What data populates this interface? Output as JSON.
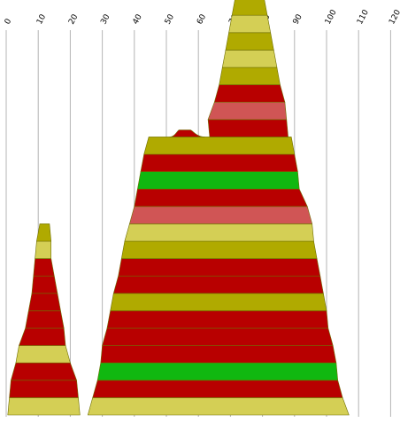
{
  "colors": {
    "olive": "#b0aa00",
    "khaki": "#d4cf55",
    "red": "#b80000",
    "rose": "#d05555",
    "green": "#10b810",
    "grid": "#b4b4b4"
  },
  "chart_data": {
    "type": "area",
    "title": "",
    "xlabel": "",
    "ylabel": "",
    "x_ticks": [
      "0",
      "10",
      "20",
      "30",
      "40",
      "50",
      "60",
      "70",
      "80",
      "90",
      "100",
      "110",
      "120"
    ],
    "x_range": [
      0,
      120
    ],
    "grid": "vertical lines at every 10 units",
    "legend": "none",
    "shapes": [
      {
        "name": "",
        "bands": [
          {
            "bottom": 0,
            "top": 1,
            "x_bottom": [
              0.5,
              23.0
            ],
            "x_top": [
              1.0,
              22.5
            ],
            "color": "khaki"
          },
          {
            "bottom": 1,
            "top": 2,
            "x_bottom": [
              1.0,
              22.5
            ],
            "x_top": [
              1.5,
              22.0
            ],
            "color": "red"
          },
          {
            "bottom": 2,
            "top": 3,
            "x_bottom": [
              1.5,
              22.0
            ],
            "x_top": [
              3.0,
              20.0
            ],
            "color": "red"
          },
          {
            "bottom": 3,
            "top": 4,
            "x_bottom": [
              3.0,
              20.0
            ],
            "x_top": [
              4.0,
              18.5
            ],
            "color": "khaki"
          },
          {
            "bottom": 4,
            "top": 5,
            "x_bottom": [
              4.0,
              18.5
            ],
            "x_top": [
              6.0,
              18.0
            ],
            "color": "red"
          },
          {
            "bottom": 5,
            "top": 6,
            "x_bottom": [
              6.0,
              18.0
            ],
            "x_top": [
              7.0,
              17.0
            ],
            "color": "red"
          },
          {
            "bottom": 6,
            "top": 7,
            "x_bottom": [
              7.0,
              17.0
            ],
            "x_top": [
              8.0,
              16.0
            ],
            "color": "red"
          },
          {
            "bottom": 7,
            "top": 8,
            "x_bottom": [
              8.0,
              16.0
            ],
            "x_top": [
              8.5,
              15.0
            ],
            "color": "red"
          },
          {
            "bottom": 8,
            "top": 9,
            "x_bottom": [
              8.5,
              15.0
            ],
            "x_top": [
              9.0,
              14.0
            ],
            "color": "red"
          },
          {
            "bottom": 9,
            "top": 10,
            "x_bottom": [
              9.0,
              14.0
            ],
            "x_top": [
              9.5,
              14.0
            ],
            "color": "khaki"
          },
          {
            "bottom": 10,
            "top": 11,
            "x_bottom": [
              9.5,
              14.0
            ],
            "x_top": [
              10.5,
              13.5
            ],
            "color": "olive"
          }
        ]
      },
      {
        "name": "",
        "bands": [
          {
            "bottom": 0,
            "top": 1,
            "x_bottom": [
              25.5,
              107.0
            ],
            "x_top": [
              27.0,
              105.0
            ],
            "color": "khaki"
          },
          {
            "bottom": 1,
            "top": 2,
            "x_bottom": [
              27.0,
              105.0
            ],
            "x_top": [
              28.5,
              103.5
            ],
            "color": "red"
          },
          {
            "bottom": 2,
            "top": 3,
            "x_bottom": [
              28.5,
              103.5
            ],
            "x_top": [
              29.5,
              103.0
            ],
            "color": "green"
          },
          {
            "bottom": 3,
            "top": 4,
            "x_bottom": [
              29.5,
              103.0
            ],
            "x_top": [
              30.0,
              102.0
            ],
            "color": "red"
          },
          {
            "bottom": 4,
            "top": 5,
            "x_bottom": [
              30.0,
              102.0
            ],
            "x_top": [
              31.5,
              100.5
            ],
            "color": "red"
          },
          {
            "bottom": 5,
            "top": 6,
            "x_bottom": [
              31.5,
              100.5
            ],
            "x_top": [
              32.5,
              100.0
            ],
            "color": "red"
          },
          {
            "bottom": 6,
            "top": 7,
            "x_bottom": [
              32.5,
              100.0
            ],
            "x_top": [
              33.5,
              99.0
            ],
            "color": "olive"
          },
          {
            "bottom": 7,
            "top": 8,
            "x_bottom": [
              33.5,
              99.0
            ],
            "x_top": [
              35.0,
              98.0
            ],
            "color": "red"
          },
          {
            "bottom": 8,
            "top": 9,
            "x_bottom": [
              35.0,
              98.0
            ],
            "x_top": [
              36.0,
              97.0
            ],
            "color": "red"
          },
          {
            "bottom": 9,
            "top": 10,
            "x_bottom": [
              36.0,
              97.0
            ],
            "x_top": [
              37.0,
              96.0
            ],
            "color": "olive"
          },
          {
            "bottom": 10,
            "top": 11,
            "x_bottom": [
              37.0,
              96.0
            ],
            "x_top": [
              38.5,
              95.5
            ],
            "color": "khaki"
          },
          {
            "bottom": 11,
            "top": 12,
            "x_bottom": [
              38.5,
              95.5
            ],
            "x_top": [
              40.0,
              94.0
            ],
            "color": "rose"
          },
          {
            "bottom": 12,
            "top": 13,
            "x_bottom": [
              40.0,
              94.0
            ],
            "x_top": [
              41.0,
              91.5
            ],
            "color": "red"
          },
          {
            "bottom": 13,
            "top": 14,
            "x_bottom": [
              41.0,
              91.5
            ],
            "x_top": [
              42.0,
              91.0
            ],
            "color": "green"
          },
          {
            "bottom": 14,
            "top": 15,
            "x_bottom": [
              42.0,
              91.0
            ],
            "x_top": [
              43.0,
              90.0
            ],
            "color": "red"
          },
          {
            "bottom": 15,
            "top": 16,
            "x_bottom": [
              43.0,
              90.0
            ],
            "x_top": [
              44.5,
              89.0
            ],
            "color": "olive"
          },
          {
            "bottom": 16,
            "top": 17,
            "x_bottom": [
              63.5,
              88.0
            ],
            "x_top": [
              63.0,
              87.5
            ],
            "color": "red"
          },
          {
            "bottom": 17,
            "top": 18,
            "x_bottom": [
              63.0,
              87.5
            ],
            "x_top": [
              65.0,
              87.0
            ],
            "color": "rose"
          },
          {
            "bottom": 18,
            "top": 19,
            "x_bottom": [
              65.0,
              87.0
            ],
            "x_top": [
              66.5,
              85.5
            ],
            "color": "red"
          },
          {
            "bottom": 19,
            "top": 20,
            "x_bottom": [
              66.5,
              85.5
            ],
            "x_top": [
              67.5,
              84.5
            ],
            "color": "olive"
          },
          {
            "bottom": 20,
            "top": 21,
            "x_bottom": [
              67.5,
              84.5
            ],
            "x_top": [
              68.5,
              83.5
            ],
            "color": "khaki"
          },
          {
            "bottom": 21,
            "top": 22,
            "x_bottom": [
              68.5,
              83.5
            ],
            "x_top": [
              69.5,
              82.5
            ],
            "color": "olive"
          },
          {
            "bottom": 22,
            "top": 23,
            "x_bottom": [
              69.5,
              82.5
            ],
            "x_top": [
              70.5,
              81.5
            ],
            "color": "khaki"
          },
          {
            "bottom": 23,
            "top": 24,
            "x_bottom": [
              70.5,
              81.5
            ],
            "x_top": [
              71.5,
              80.5
            ],
            "color": "olive"
          }
        ],
        "bumps": [
          {
            "base": 16,
            "peak": 16.4,
            "x_range": [
              51.0,
              62.0
            ],
            "peak_x_range": [
              54.0,
              57.5
            ],
            "color": "red"
          }
        ]
      }
    ]
  }
}
